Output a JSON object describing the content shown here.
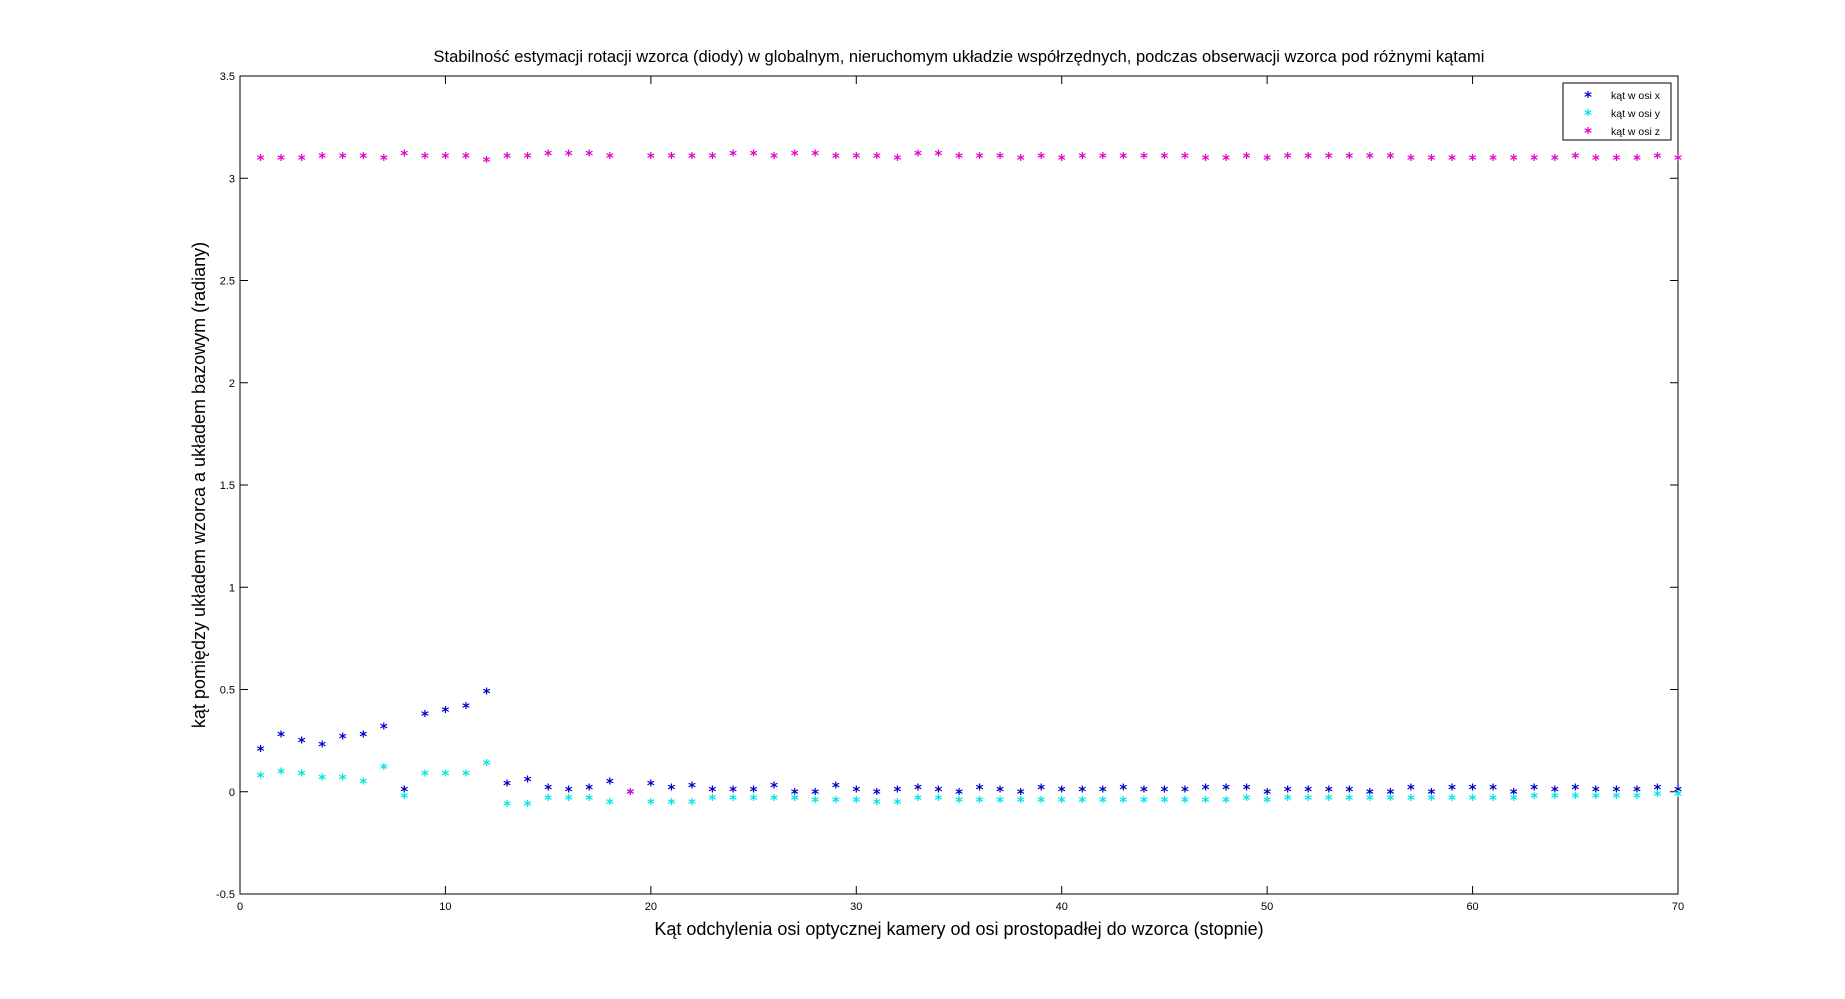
{
  "chart_data": {
    "type": "scatter",
    "title": "Stabilność estymacji rotacji wzorca (diody) w globalnym, nieruchomym układzie współrzędnych, podczas obserwacji wzorca pod różnymi kątami",
    "xlabel": "Kąt odchylenia osi optycznej kamery od osi prostopadłej do wzorca (stopnie)",
    "ylabel": "kąt pomiędzy układem wzorca a układem bazowym (radiany)",
    "xlim": [
      0,
      70
    ],
    "ylim": [
      -0.5,
      3.5
    ],
    "x_ticks": [
      0,
      10,
      20,
      30,
      40,
      50,
      60,
      70
    ],
    "x_tick_labels": [
      "0",
      "10",
      "20",
      "30",
      "40",
      "50",
      "60",
      "70"
    ],
    "y_ticks": [
      -0.5,
      0,
      0.5,
      1,
      1.5,
      2,
      2.5,
      3,
      3.5
    ],
    "y_tick_labels": [
      "-0.5",
      "0",
      "0.5",
      "1",
      "1.5",
      "2",
      "2.5",
      "3",
      "3.5"
    ],
    "grid": false,
    "legend_position": "top-right",
    "marker_glyph": "*",
    "x": [
      1,
      2,
      3,
      4,
      5,
      6,
      7,
      8,
      9,
      10,
      11,
      12,
      13,
      14,
      15,
      16,
      17,
      18,
      19,
      20,
      21,
      22,
      23,
      24,
      25,
      26,
      27,
      28,
      29,
      30,
      31,
      32,
      33,
      34,
      35,
      36,
      37,
      38,
      39,
      40,
      41,
      42,
      43,
      44,
      45,
      46,
      47,
      48,
      49,
      50,
      51,
      52,
      53,
      54,
      55,
      56,
      57,
      58,
      59,
      60,
      61,
      62,
      63,
      64,
      65,
      66,
      67,
      68,
      69,
      70
    ],
    "series": [
      {
        "name": "kąt w osi x",
        "color": "#0000cc",
        "values": [
          0.21,
          0.28,
          0.25,
          0.23,
          0.27,
          0.28,
          0.32,
          0.01,
          0.38,
          0.4,
          0.42,
          0.49,
          0.04,
          0.06,
          0.02,
          0.01,
          0.02,
          0.05,
          0.0,
          0.04,
          0.02,
          0.03,
          0.01,
          0.01,
          0.01,
          0.03,
          0.0,
          0.0,
          0.03,
          0.01,
          0.0,
          0.01,
          0.02,
          0.01,
          0.0,
          0.02,
          0.01,
          0.0,
          0.02,
          0.01,
          0.01,
          0.01,
          0.02,
          0.01,
          0.01,
          0.01,
          0.02,
          0.02,
          0.02,
          0.0,
          0.01,
          0.01,
          0.01,
          0.01,
          0.0,
          0.0,
          0.02,
          0.0,
          0.02,
          0.02,
          0.02,
          0.0,
          0.02,
          0.01,
          0.02,
          0.01,
          0.01,
          0.01,
          0.02,
          0.01
        ]
      },
      {
        "name": "kąt w osi y",
        "color": "#00e5e5",
        "values": [
          0.08,
          0.1,
          0.09,
          0.07,
          0.07,
          0.05,
          0.12,
          -0.02,
          0.09,
          0.09,
          0.09,
          0.14,
          -0.06,
          -0.06,
          -0.03,
          -0.03,
          -0.03,
          -0.05,
          0.0,
          -0.05,
          -0.05,
          -0.05,
          -0.03,
          -0.03,
          -0.03,
          -0.03,
          -0.03,
          -0.04,
          -0.04,
          -0.04,
          -0.05,
          -0.05,
          -0.03,
          -0.03,
          -0.04,
          -0.04,
          -0.04,
          -0.04,
          -0.04,
          -0.04,
          -0.04,
          -0.04,
          -0.04,
          -0.04,
          -0.04,
          -0.04,
          -0.04,
          -0.04,
          -0.03,
          -0.04,
          -0.03,
          -0.03,
          -0.03,
          -0.03,
          -0.03,
          -0.03,
          -0.03,
          -0.03,
          -0.03,
          -0.03,
          -0.03,
          -0.03,
          -0.02,
          -0.02,
          -0.02,
          -0.02,
          -0.02,
          -0.02,
          -0.01,
          -0.01
        ]
      },
      {
        "name": "kąt w osi z",
        "color": "#e500cc",
        "values": [
          3.1,
          3.1,
          3.1,
          3.11,
          3.11,
          3.11,
          3.1,
          3.12,
          3.11,
          3.11,
          3.11,
          3.09,
          3.11,
          3.11,
          3.12,
          3.12,
          3.12,
          3.11,
          0.0,
          3.11,
          3.11,
          3.11,
          3.11,
          3.12,
          3.12,
          3.11,
          3.12,
          3.12,
          3.11,
          3.11,
          3.11,
          3.1,
          3.12,
          3.12,
          3.11,
          3.11,
          3.11,
          3.1,
          3.11,
          3.1,
          3.11,
          3.11,
          3.11,
          3.11,
          3.11,
          3.11,
          3.1,
          3.1,
          3.11,
          3.1,
          3.11,
          3.11,
          3.11,
          3.11,
          3.11,
          3.11,
          3.1,
          3.1,
          3.1,
          3.1,
          3.1,
          3.1,
          3.1,
          3.1,
          3.11,
          3.1,
          3.1,
          3.1,
          3.11,
          3.1
        ]
      }
    ]
  }
}
